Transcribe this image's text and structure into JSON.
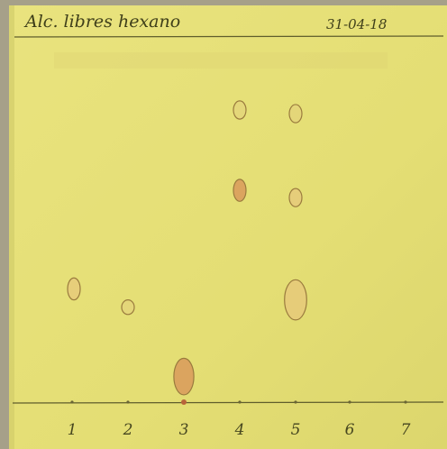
{
  "plate": {
    "header_left": "Alc. libres hexano",
    "header_right": "31-04-18",
    "colors": {
      "paper": "#e6e07a",
      "paper_shadow": "#d8d26c",
      "background": "#a6a089",
      "ink": "#3f3f1a",
      "spot_outline": "#9a7b3e",
      "spot_fill_strong": "#d99a5c",
      "spot_fill_light": "#e7c27d",
      "spot_fill_faint": "#e3d17c"
    },
    "lanes": [
      {
        "label": "1",
        "spots": [
          {
            "rf": 0.31,
            "intensity": "light",
            "h": 0.06
          }
        ]
      },
      {
        "label": "2",
        "spots": [
          {
            "rf": 0.26,
            "intensity": "faint",
            "h": 0.04
          }
        ]
      },
      {
        "label": "3",
        "spots": [
          {
            "rf": 0.07,
            "intensity": "strong",
            "h": 0.1
          }
        ]
      },
      {
        "label": "4",
        "spots": [
          {
            "rf": 0.58,
            "intensity": "strong",
            "h": 0.06
          },
          {
            "rf": 0.8,
            "intensity": "faint",
            "h": 0.05
          }
        ]
      },
      {
        "label": "5",
        "spots": [
          {
            "rf": 0.28,
            "intensity": "light",
            "h": 0.11
          },
          {
            "rf": 0.56,
            "intensity": "light",
            "h": 0.05
          },
          {
            "rf": 0.79,
            "intensity": "faint",
            "h": 0.05
          }
        ]
      },
      {
        "label": "6",
        "spots": []
      },
      {
        "label": "7",
        "spots": []
      }
    ]
  }
}
